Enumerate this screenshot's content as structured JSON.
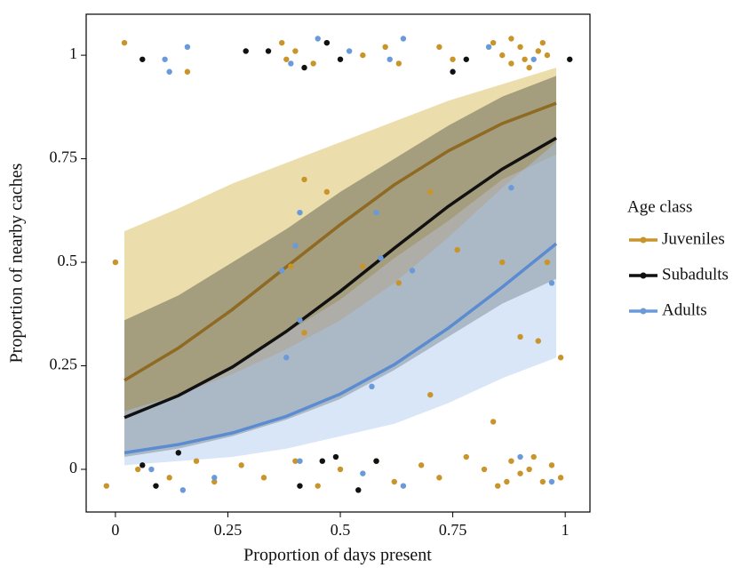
{
  "chart_data": {
    "type": "logistic",
    "x_label": "Proportion of days present",
    "y_label": "Proportion of nearby caches",
    "legend_title": "Age class",
    "xlim": [
      -0.065,
      1.055
    ],
    "ylim": [
      -0.103,
      1.099
    ],
    "xticks": [
      0,
      0.25,
      0.5,
      0.75,
      1
    ],
    "yticks": [
      0,
      0.25,
      0.5,
      0.75,
      1
    ],
    "x": [
      0.02,
      0.14,
      0.26,
      0.38,
      0.5,
      0.62,
      0.74,
      0.86,
      0.98
    ],
    "series": [
      {
        "name": "Juveniles",
        "color": "#c9952b",
        "line_color": "#8f6a22",
        "band_color": "#e8d89e",
        "values": [
          0.215,
          0.293,
          0.386,
          0.489,
          0.591,
          0.687,
          0.769,
          0.835,
          0.884
        ],
        "lower": [
          0.13,
          0.18,
          0.25,
          0.33,
          0.41,
          0.51,
          0.6,
          0.7,
          0.76
        ],
        "upper": [
          0.575,
          0.63,
          0.69,
          0.74,
          0.79,
          0.84,
          0.89,
          0.93,
          0.97
        ],
        "points": {
          "x": [
            0.02,
            0.16,
            0.37,
            0.38,
            0.4,
            0.44,
            0.47,
            0.55,
            0.6,
            0.63,
            0.72,
            0.75,
            0.84,
            0.86,
            0.88,
            0.9,
            0.92,
            0.94,
            0.96,
            0.88,
            0.91,
            0.95,
            0.0,
            0.42,
            0.47,
            0.39,
            0.42,
            0.55,
            0.63,
            0.7,
            0.7,
            0.84,
            0.86,
            0.9,
            0.94,
            0.96,
            0.99,
            0.76,
            -0.02,
            0.05,
            0.12,
            0.18,
            0.22,
            0.28,
            0.33,
            0.4,
            0.45,
            0.5,
            0.58,
            0.62,
            0.68,
            0.72,
            0.78,
            0.82,
            0.85,
            0.88,
            0.9,
            0.93,
            0.95,
            0.97,
            0.99,
            0.87,
            0.92
          ],
          "y": [
            1.03,
            0.96,
            1.03,
            0.99,
            1.01,
            0.98,
            1.03,
            1.0,
            1.02,
            0.98,
            1.02,
            0.99,
            1.03,
            1.0,
            0.98,
            1.02,
            0.97,
            1.01,
            1.0,
            1.04,
            0.99,
            1.03,
            0.5,
            0.7,
            0.67,
            0.49,
            0.33,
            0.49,
            0.45,
            0.18,
            0.67,
            0.115,
            0.5,
            0.32,
            0.31,
            0.5,
            0.27,
            0.53,
            -0.04,
            0.0,
            -0.02,
            0.02,
            -0.03,
            0.01,
            -0.02,
            0.02,
            -0.04,
            0.0,
            0.02,
            -0.03,
            0.01,
            -0.02,
            0.03,
            0.0,
            -0.04,
            0.02,
            -0.01,
            0.03,
            -0.03,
            0.01,
            -0.02,
            -0.03,
            0.0
          ]
        }
      },
      {
        "name": "Subadults",
        "color": "#111111",
        "line_color": "#111111",
        "band_color": "#5e5b50",
        "values": [
          0.125,
          0.178,
          0.247,
          0.333,
          0.43,
          0.534,
          0.635,
          0.725,
          0.8
        ],
        "lower": [
          0.03,
          0.05,
          0.08,
          0.12,
          0.17,
          0.24,
          0.32,
          0.4,
          0.46
        ],
        "upper": [
          0.36,
          0.42,
          0.5,
          0.58,
          0.67,
          0.75,
          0.83,
          0.9,
          0.95
        ],
        "points": {
          "x": [
            0.06,
            0.29,
            0.34,
            0.42,
            0.47,
            0.5,
            0.75,
            0.78,
            1.01,
            0.06,
            0.09,
            0.14,
            0.41,
            0.46,
            0.49,
            0.54,
            0.58
          ],
          "y": [
            0.99,
            1.01,
            1.01,
            0.97,
            1.03,
            0.99,
            0.96,
            0.99,
            0.99,
            0.01,
            -0.04,
            0.04,
            -0.04,
            0.02,
            0.03,
            -0.05,
            0.02
          ]
        }
      },
      {
        "name": "Adults",
        "color": "#6a9ad8",
        "line_color": "#5b8bd0",
        "band_color": "#a9c8ee",
        "values": [
          0.04,
          0.06,
          0.088,
          0.128,
          0.182,
          0.253,
          0.341,
          0.44,
          0.545
        ],
        "lower": [
          0.01,
          0.02,
          0.03,
          0.05,
          0.08,
          0.11,
          0.16,
          0.22,
          0.27
        ],
        "upper": [
          0.14,
          0.18,
          0.23,
          0.29,
          0.36,
          0.45,
          0.56,
          0.68,
          0.79
        ],
        "points": {
          "x": [
            0.11,
            0.12,
            0.16,
            0.39,
            0.45,
            0.52,
            0.61,
            0.64,
            0.83,
            0.93,
            0.41,
            0.4,
            0.37,
            0.41,
            0.38,
            0.58,
            0.59,
            0.57,
            0.66,
            0.88,
            0.97,
            0.08,
            0.22,
            0.41,
            0.55,
            0.64,
            0.9,
            0.97,
            0.15
          ],
          "y": [
            0.99,
            0.96,
            1.02,
            0.98,
            1.04,
            1.01,
            0.99,
            1.04,
            1.02,
            0.99,
            0.62,
            0.54,
            0.48,
            0.36,
            0.27,
            0.62,
            0.51,
            0.2,
            0.48,
            0.68,
            0.45,
            0.0,
            -0.02,
            0.02,
            -0.01,
            -0.04,
            0.03,
            -0.03,
            -0.05
          ]
        }
      }
    ]
  }
}
